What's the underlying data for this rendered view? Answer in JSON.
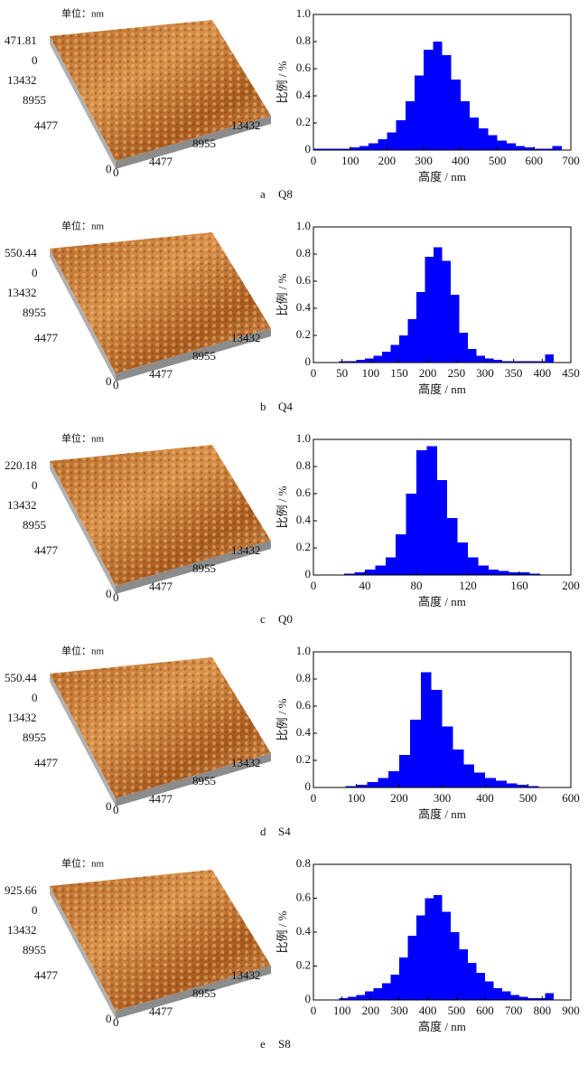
{
  "chart_data": [
    {
      "type": "histogram",
      "xlabel": "高度 / nm",
      "ylabel": "比例 / %",
      "color": "#0000ff",
      "xlim": [
        0,
        700
      ],
      "xticks": [
        0,
        100,
        200,
        300,
        400,
        500,
        600,
        700
      ],
      "ylim": [
        0,
        1
      ],
      "yticks": [
        0,
        0.2,
        0.4,
        0.6,
        0.8,
        {
          "value": 1,
          "label": "1.0"
        }
      ],
      "bins": [
        0,
        25,
        50,
        75,
        100,
        125,
        150,
        175,
        200,
        225,
        250,
        275,
        300,
        325,
        350,
        375,
        400,
        425,
        450,
        475,
        500,
        525,
        550,
        575,
        600,
        625,
        650,
        675,
        700
      ],
      "values": [
        0.01,
        0.01,
        0.01,
        0.01,
        0.02,
        0.03,
        0.05,
        0.08,
        0.13,
        0.22,
        0.36,
        0.55,
        0.74,
        0.8,
        0.7,
        0.52,
        0.36,
        0.24,
        0.16,
        0.11,
        0.07,
        0.05,
        0.03,
        0.02,
        0.01,
        0.01,
        0.03,
        0
      ]
    },
    {
      "type": "histogram",
      "xlabel": "高度 / nm",
      "ylabel": "比例 / %",
      "color": "#0000ff",
      "xlim": [
        0,
        450
      ],
      "xticks": [
        0,
        50,
        100,
        150,
        200,
        250,
        300,
        350,
        400,
        450
      ],
      "ylim": [
        0,
        1
      ],
      "yticks": [
        0,
        0.2,
        0.4,
        0.6,
        0.8,
        {
          "value": 1,
          "label": "1.0"
        }
      ],
      "bins": [
        0,
        15,
        30,
        45,
        60,
        75,
        90,
        105,
        120,
        135,
        150,
        165,
        180,
        195,
        210,
        225,
        240,
        255,
        270,
        285,
        300,
        315,
        330,
        345,
        360,
        375,
        390,
        405,
        420,
        435,
        450
      ],
      "values": [
        0,
        0,
        0,
        0.01,
        0.01,
        0.02,
        0.03,
        0.05,
        0.08,
        0.13,
        0.2,
        0.32,
        0.52,
        0.78,
        0.85,
        0.75,
        0.5,
        0.22,
        0.1,
        0.05,
        0.03,
        0.02,
        0.01,
        0.01,
        0.01,
        0.01,
        0.01,
        0.06,
        0,
        0
      ]
    },
    {
      "type": "histogram",
      "xlabel": "高度 / nm",
      "ylabel": "比例 / %",
      "color": "#0000ff",
      "xlim": [
        0,
        200
      ],
      "xticks": [
        0,
        40,
        80,
        120,
        160,
        200
      ],
      "ylim": [
        0,
        1
      ],
      "yticks": [
        0,
        0.2,
        0.4,
        0.6,
        0.8,
        {
          "value": 1,
          "label": "1.0"
        }
      ],
      "bins": [
        0,
        8,
        16,
        24,
        32,
        40,
        48,
        56,
        64,
        72,
        80,
        88,
        96,
        104,
        112,
        120,
        128,
        136,
        144,
        152,
        160,
        168,
        176,
        184,
        192,
        200
      ],
      "values": [
        0,
        0,
        0,
        0.01,
        0.02,
        0.04,
        0.07,
        0.13,
        0.3,
        0.6,
        0.92,
        0.95,
        0.7,
        0.42,
        0.24,
        0.13,
        0.07,
        0.04,
        0.03,
        0.02,
        0.02,
        0.01,
        0,
        0,
        0
      ]
    },
    {
      "type": "histogram",
      "xlabel": "高度 / nm",
      "ylabel": "比例 / %",
      "color": "#0000ff",
      "xlim": [
        0,
        600
      ],
      "xticks": [
        0,
        100,
        200,
        300,
        400,
        500,
        600
      ],
      "ylim": [
        0,
        1
      ],
      "yticks": [
        0,
        0.2,
        0.4,
        0.6,
        0.8,
        {
          "value": 1,
          "label": "1.0"
        }
      ],
      "bins": [
        0,
        25,
        50,
        75,
        100,
        125,
        150,
        175,
        200,
        225,
        250,
        275,
        300,
        325,
        350,
        375,
        400,
        425,
        450,
        475,
        500,
        525,
        550,
        575,
        600
      ],
      "values": [
        0,
        0,
        0,
        0.01,
        0.02,
        0.04,
        0.07,
        0.12,
        0.24,
        0.5,
        0.85,
        0.72,
        0.45,
        0.28,
        0.17,
        0.11,
        0.07,
        0.05,
        0.03,
        0.02,
        0.01,
        0,
        0,
        0
      ]
    },
    {
      "type": "histogram",
      "xlabel": "高度 / nm",
      "ylabel": "比例 / %",
      "color": "#0000ff",
      "xlim": [
        0,
        900
      ],
      "xticks": [
        0,
        100,
        200,
        300,
        400,
        500,
        600,
        700,
        800,
        900
      ],
      "ylim": [
        0,
        0.8
      ],
      "yticks": [
        0,
        0.2,
        0.4,
        0.6,
        0.8
      ],
      "bins": [
        0,
        30,
        60,
        90,
        120,
        150,
        180,
        210,
        240,
        270,
        300,
        330,
        360,
        390,
        420,
        450,
        480,
        510,
        540,
        570,
        600,
        630,
        660,
        690,
        720,
        750,
        780,
        810,
        840,
        870,
        900
      ],
      "values": [
        0,
        0,
        0,
        0.01,
        0.02,
        0.03,
        0.05,
        0.07,
        0.1,
        0.15,
        0.25,
        0.38,
        0.5,
        0.6,
        0.62,
        0.52,
        0.4,
        0.3,
        0.22,
        0.16,
        0.11,
        0.07,
        0.05,
        0.03,
        0.02,
        0.01,
        0.01,
        0.04,
        0,
        0
      ]
    }
  ],
  "panels": [
    {
      "caption": {
        "letter": "a",
        "name": "Q8"
      },
      "afm": {
        "unit": "单位：nm",
        "zmax": 471.81,
        "z0": 0,
        "yticks": [
          13432,
          8955,
          4477
        ],
        "origin": [
          0,
          0
        ],
        "xticks": [
          4477,
          8955,
          13432
        ]
      }
    },
    {
      "caption": {
        "letter": "b",
        "name": "Q4"
      },
      "afm": {
        "unit": "单位：nm",
        "zmax": 550.44,
        "z0": 0,
        "yticks": [
          13432,
          8955,
          4477
        ],
        "origin": [
          0,
          0
        ],
        "xticks": [
          4477,
          8955,
          13432
        ]
      }
    },
    {
      "caption": {
        "letter": "c",
        "name": "Q0"
      },
      "afm": {
        "unit": "单位：nm",
        "zmax": 220.18,
        "z0": 0,
        "yticks": [
          13432,
          8955,
          4477
        ],
        "origin": [
          0,
          0
        ],
        "xticks": [
          4477,
          8955,
          13432
        ]
      }
    },
    {
      "caption": {
        "letter": "d",
        "name": "S4"
      },
      "afm": {
        "unit": "单位：nm",
        "zmax": 550.44,
        "z0": 0,
        "yticks": [
          13432,
          8955,
          4477
        ],
        "origin": [
          0,
          0
        ],
        "xticks": [
          4477,
          8955,
          13432
        ]
      }
    },
    {
      "caption": {
        "letter": "e",
        "name": "S8"
      },
      "afm": {
        "unit": "单位：nm",
        "zmax": 925.66,
        "z0": 0,
        "yticks": [
          13432,
          8955,
          4477
        ],
        "origin": [
          0,
          0
        ],
        "xticks": [
          4477,
          8955,
          13432
        ]
      }
    }
  ]
}
